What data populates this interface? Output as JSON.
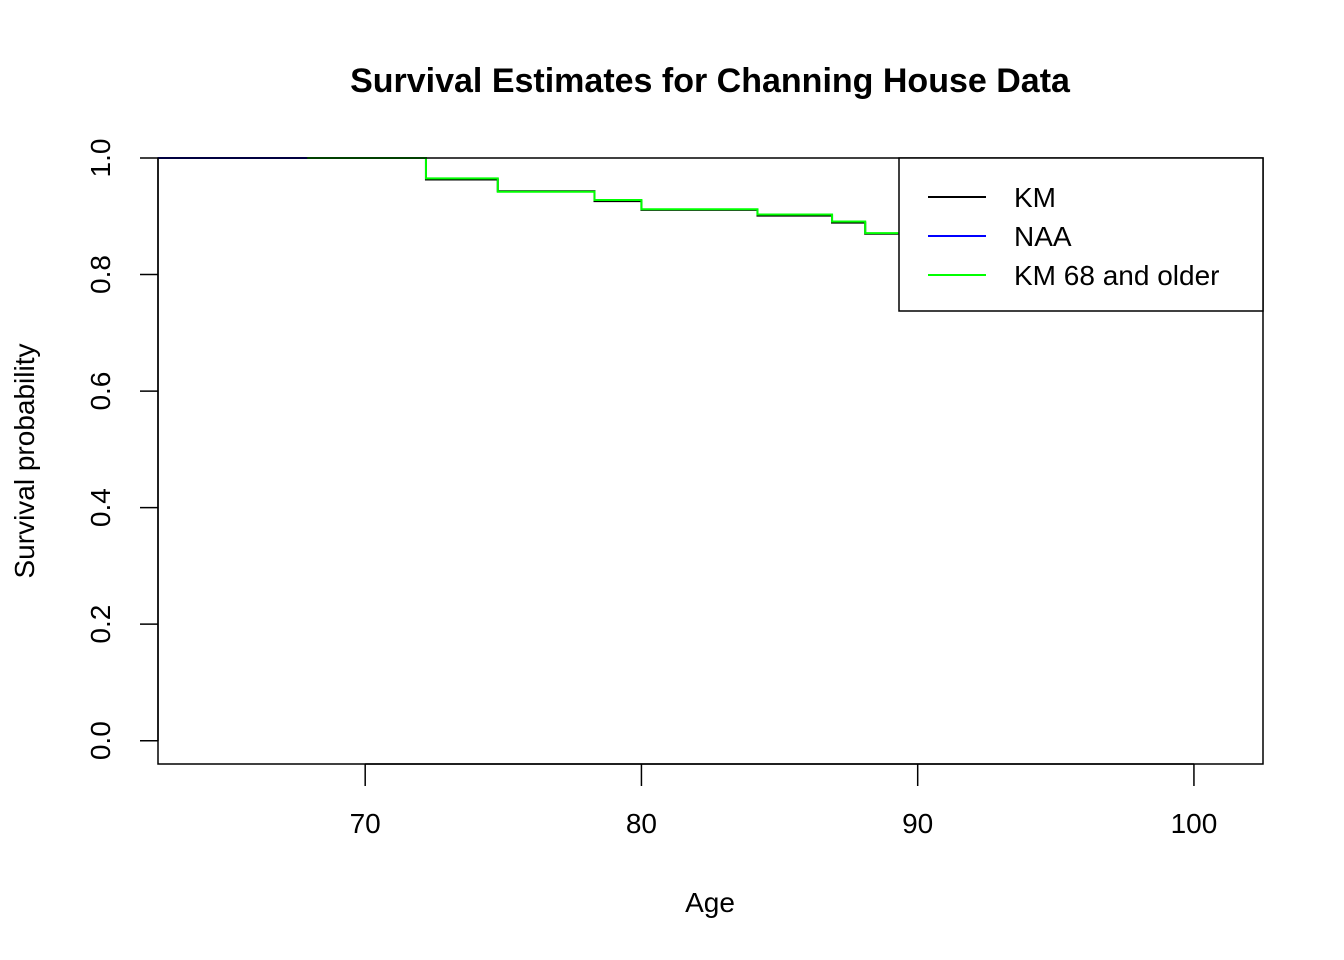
{
  "chart_data": {
    "type": "line",
    "step": true,
    "title": "Survival Estimates for Channing House Data",
    "xlabel": "Age",
    "ylabel": "Survival probability",
    "xlim": [
      62.5,
      102.5
    ],
    "ylim": [
      -0.04,
      1.0
    ],
    "xticks": [
      70,
      80,
      90,
      100
    ],
    "yticks": [
      0.0,
      0.2,
      0.4,
      0.6,
      0.8,
      1.0
    ],
    "xtick_labels": [
      "70",
      "80",
      "90",
      "100"
    ],
    "ytick_labels": [
      "0.0",
      "0.2",
      "0.4",
      "0.6",
      "0.8",
      "1.0"
    ],
    "grid": false,
    "legend_position": "top-right",
    "series": [
      {
        "name": "KM",
        "color": "#000000",
        "x": [
          62.5,
          72.2,
          74.8,
          78.3,
          80.0,
          84.2,
          86.9,
          88.1,
          89.3
        ],
        "y": [
          1.0,
          0.963,
          0.943,
          0.926,
          0.911,
          0.901,
          0.889,
          0.87,
          0.87
        ]
      },
      {
        "name": "NAA",
        "color": "#0000ff",
        "x": [
          62.5,
          67.9
        ],
        "y": [
          1.0,
          1.0
        ]
      },
      {
        "name": "KM 68 and older",
        "color": "#00ff00",
        "x": [
          67.9,
          72.2,
          74.8,
          78.3,
          80.0,
          84.2,
          86.9,
          88.1,
          89.3
        ],
        "y": [
          1.0,
          0.965,
          0.942,
          0.928,
          0.912,
          0.903,
          0.891,
          0.871,
          0.871
        ]
      }
    ]
  }
}
